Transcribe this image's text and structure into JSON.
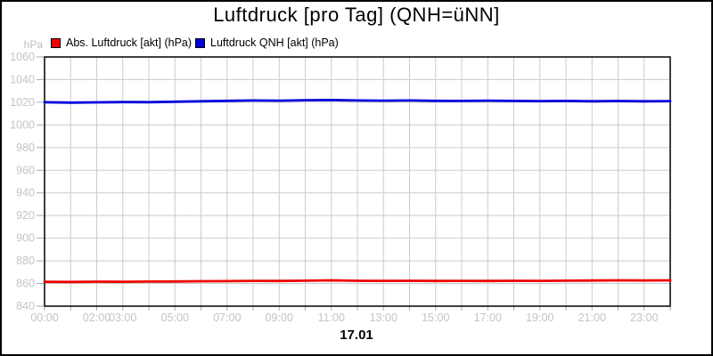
{
  "window": {
    "title": "Luftdruck [pro Tag] (QNH=üNN]"
  },
  "chart_data": {
    "type": "line",
    "title": "Luftdruck [pro Tag] (QNH=üNN]",
    "y_unit": "hPa",
    "ylim": [
      840,
      1060
    ],
    "y_ticks": [
      840,
      860,
      880,
      900,
      920,
      940,
      960,
      980,
      1000,
      1020,
      1040,
      1060
    ],
    "xlim_hours": [
      0,
      24
    ],
    "x_gridline_every_hours": 1,
    "x_tick_labels": [
      {
        "hour": 0,
        "label": "00:00"
      },
      {
        "hour": 2,
        "label": "02:00"
      },
      {
        "hour": 3,
        "label": "03:00"
      },
      {
        "hour": 5,
        "label": "05:00"
      },
      {
        "hour": 7,
        "label": "07:00"
      },
      {
        "hour": 9,
        "label": "09:00"
      },
      {
        "hour": 11,
        "label": "11:00"
      },
      {
        "hour": 13,
        "label": "13:00"
      },
      {
        "hour": 15,
        "label": "15:00"
      },
      {
        "hour": 17,
        "label": "17:00"
      },
      {
        "hour": 19,
        "label": "19:00"
      },
      {
        "hour": 21,
        "label": "21:00"
      },
      {
        "hour": 23,
        "label": "23:00"
      }
    ],
    "x_axis_date_label": "17.01",
    "grid": true,
    "legend_position": "top-left",
    "colors": {
      "grid": "#cccccc",
      "ticks": "#aaaaaa",
      "tick_labels": "#c4c4c4",
      "plot_border": "#000000"
    },
    "series": [
      {
        "name": "Abs. Luftdruck [akt] (hPa)",
        "color": "#ee0000",
        "x_hours": [
          0,
          1,
          2,
          3,
          4,
          5,
          6,
          7,
          8,
          9,
          10,
          11,
          12,
          13,
          14,
          15,
          16,
          17,
          18,
          19,
          20,
          21,
          22,
          23,
          24
        ],
        "values": [
          861.5,
          861.4,
          861.6,
          861.5,
          861.7,
          861.8,
          862.0,
          862.1,
          862.3,
          862.2,
          862.5,
          862.8,
          862.4,
          862.3,
          862.4,
          862.2,
          862.3,
          862.2,
          862.4,
          862.3,
          862.5,
          862.6,
          862.8,
          862.7,
          862.8
        ]
      },
      {
        "name": "Luftdruck QNH [akt] (hPa)",
        "color": "#0000dd",
        "x_hours": [
          0,
          1,
          2,
          3,
          4,
          5,
          6,
          7,
          8,
          9,
          10,
          11,
          12,
          13,
          14,
          15,
          16,
          17,
          18,
          19,
          20,
          21,
          22,
          23,
          24
        ],
        "values": [
          1020.0,
          1019.7,
          1019.9,
          1020.2,
          1020.1,
          1020.5,
          1020.9,
          1021.3,
          1021.6,
          1021.4,
          1021.8,
          1022.0,
          1021.6,
          1021.4,
          1021.6,
          1021.3,
          1021.2,
          1021.4,
          1021.2,
          1021.0,
          1021.2,
          1020.9,
          1021.1,
          1020.9,
          1021.0
        ]
      }
    ]
  }
}
